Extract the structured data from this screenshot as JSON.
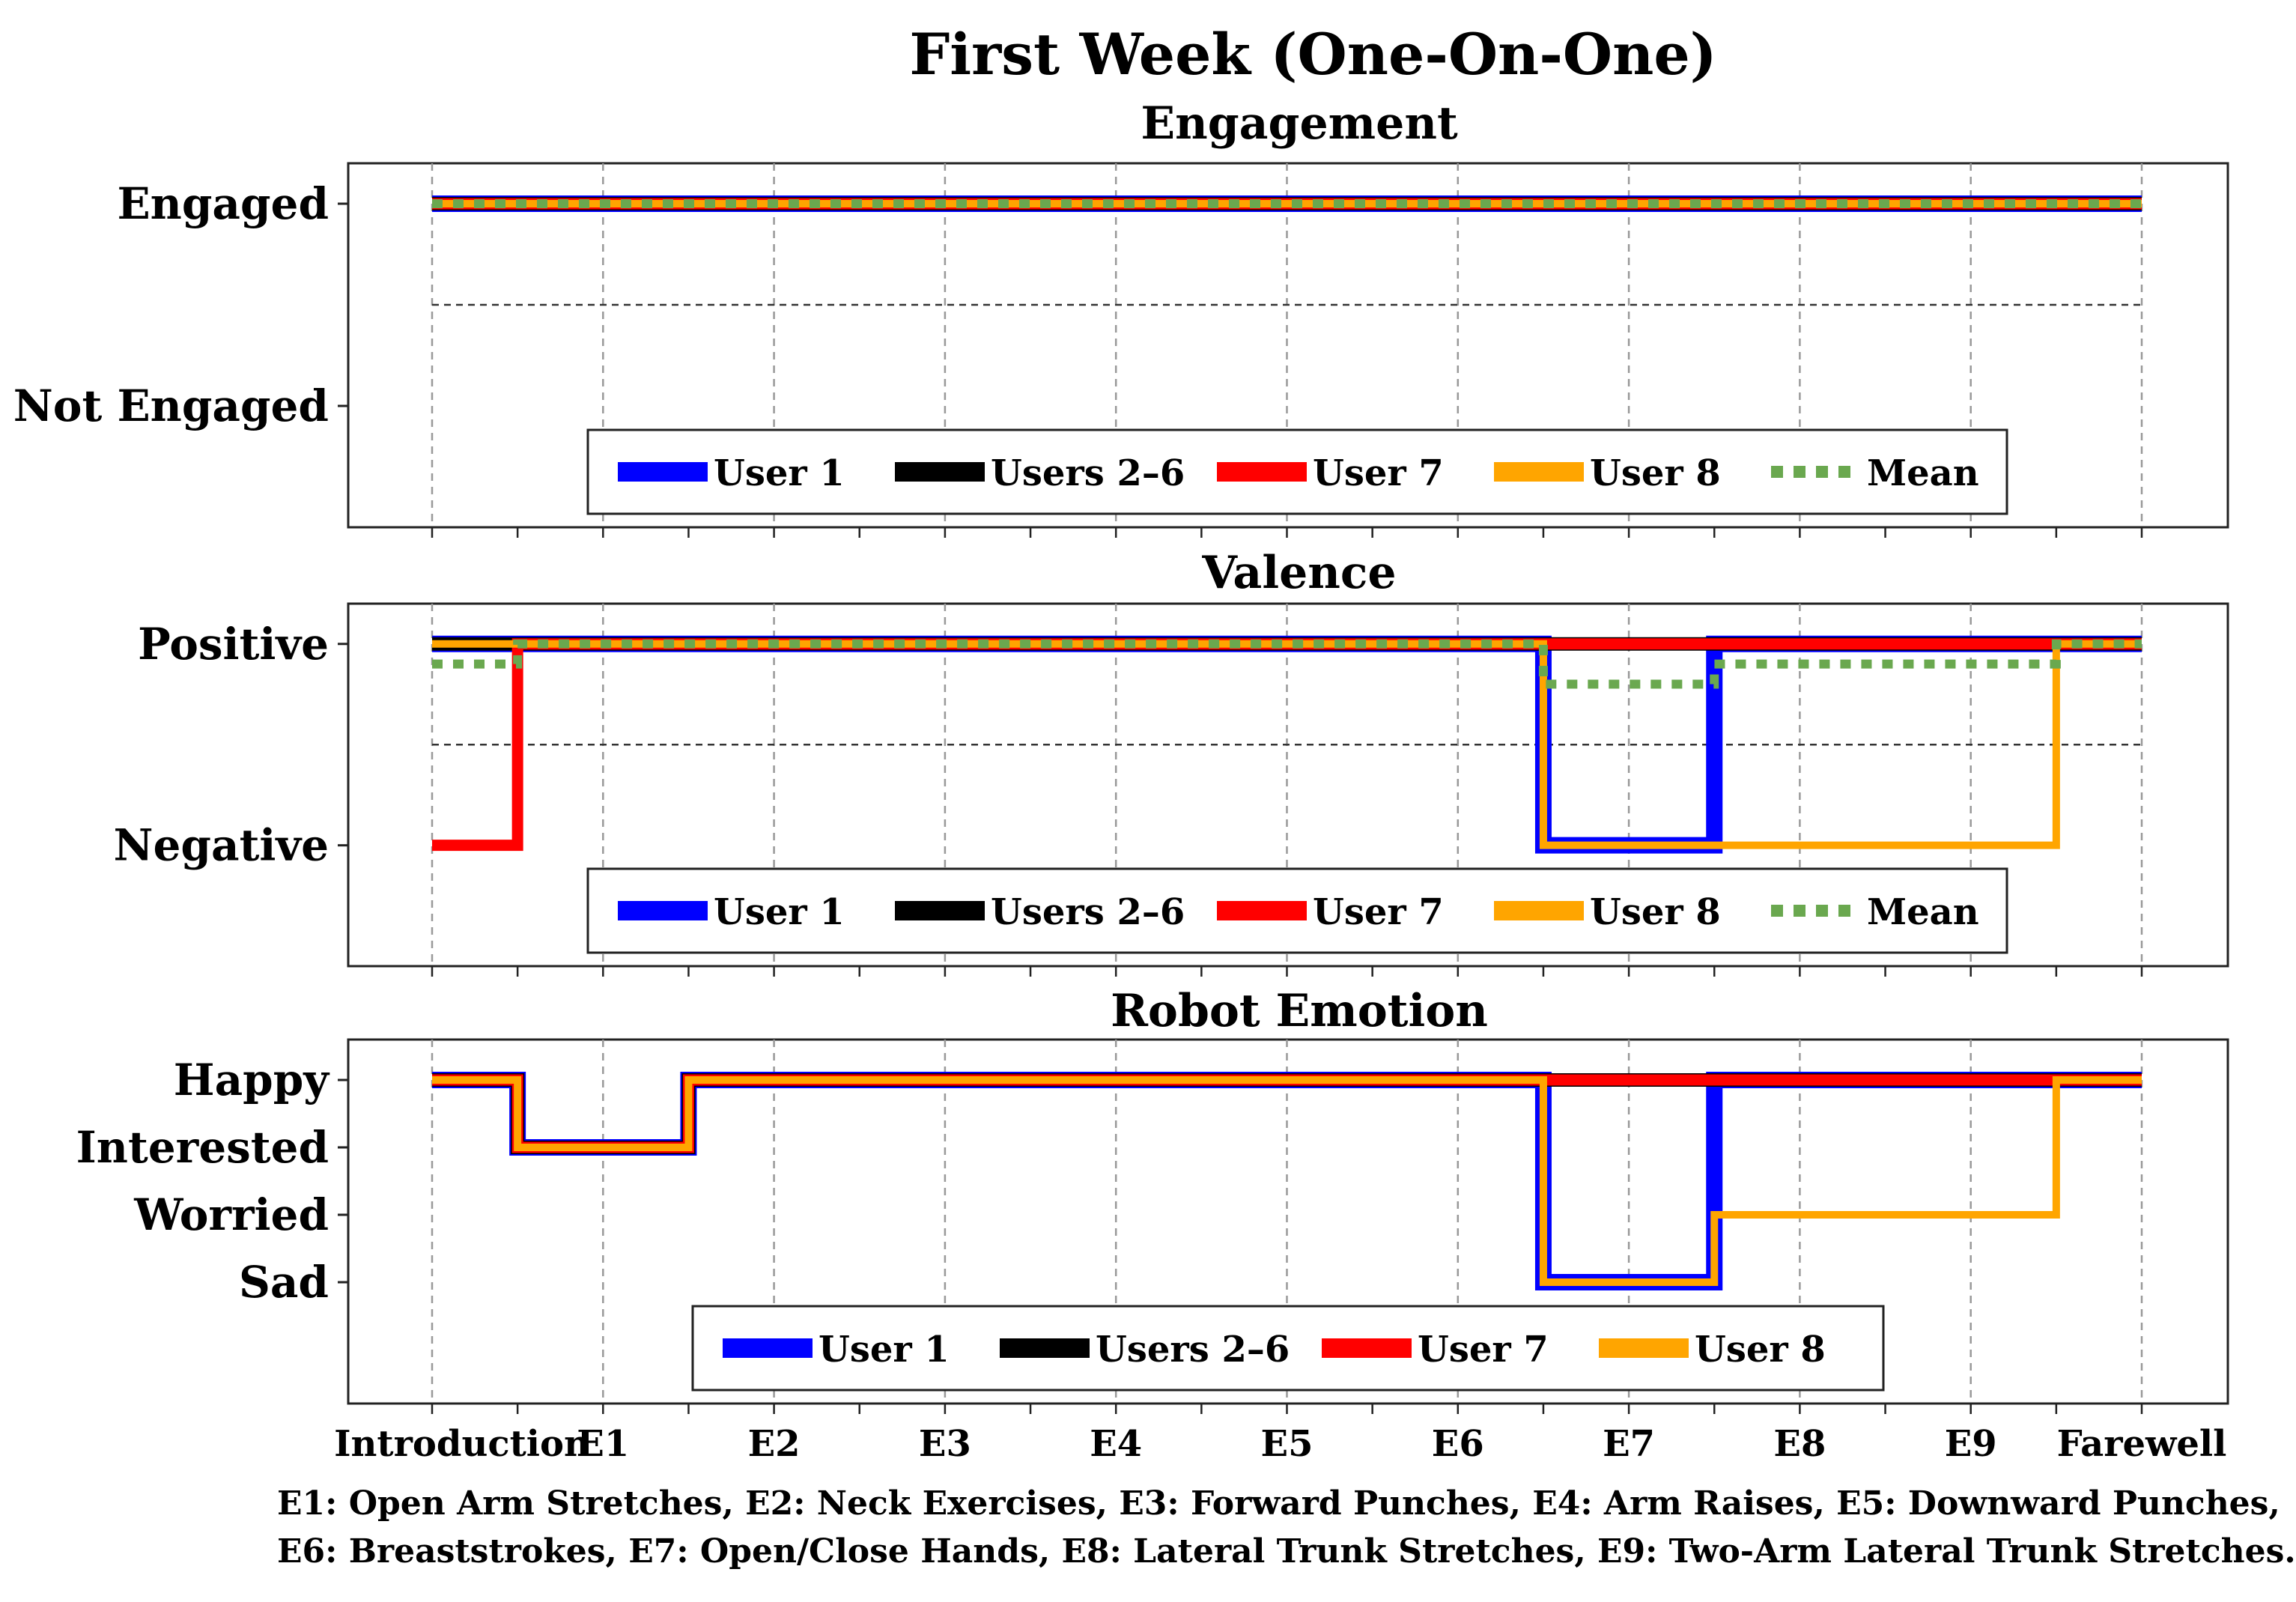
{
  "figure_title": "First Week (One-On-One)",
  "footnote": {
    "line1": "E1: Open Arm Stretches, E2: Neck Exercises, E3: Forward Punches, E4: Arm Raises, E5: Downward Punches,",
    "line2": "E6: Breaststrokes, E7: Open/Close Hands, E8: Lateral Trunk Stretches, E9: Two-Arm Lateral Trunk Stretches."
  },
  "colors": {
    "user1": "#0000ff",
    "users2_6": "#000000",
    "user7": "#ff0000",
    "user8": "#ffa500",
    "mean": "#6aa84f"
  },
  "chart_data": [
    {
      "type": "line",
      "title": "Engagement",
      "categories": [
        "Introduction",
        "E1",
        "E2",
        "E3",
        "E4",
        "E5",
        "E6",
        "E7",
        "E8",
        "E9",
        "Farewell"
      ],
      "y_tick_labels": [
        "Not Engaged",
        "Engaged"
      ],
      "y_tick_values": [
        0,
        1
      ],
      "ylim": [
        -0.6,
        1.2
      ],
      "grid": "vertical dashed at each category",
      "reference_line": 0.5,
      "legend_placement": "lower center",
      "legend": [
        "User 1",
        "Users 2–6",
        "User 7",
        "User 8",
        "Mean"
      ],
      "series": [
        {
          "name": "User 1",
          "values": [
            1,
            1,
            1,
            1,
            1,
            1,
            1,
            1,
            1,
            1,
            1
          ]
        },
        {
          "name": "Users 2–6",
          "values": [
            1,
            1,
            1,
            1,
            1,
            1,
            1,
            1,
            1,
            1,
            1
          ]
        },
        {
          "name": "User 7",
          "values": [
            1,
            1,
            1,
            1,
            1,
            1,
            1,
            1,
            1,
            1,
            1
          ]
        },
        {
          "name": "User 8",
          "values": [
            1,
            1,
            1,
            1,
            1,
            1,
            1,
            1,
            1,
            1,
            1
          ]
        },
        {
          "name": "Mean",
          "values": [
            1,
            1,
            1,
            1,
            1,
            1,
            1,
            1,
            1,
            1,
            1
          ]
        }
      ]
    },
    {
      "type": "line",
      "title": "Valence",
      "categories": [
        "Introduction",
        "E1",
        "E2",
        "E3",
        "E4",
        "E5",
        "E6",
        "E7",
        "E8",
        "E9",
        "Farewell"
      ],
      "y_tick_labels": [
        "Negative",
        "Positive"
      ],
      "y_tick_values": [
        0,
        1
      ],
      "ylim": [
        -0.6,
        1.2
      ],
      "grid": "vertical dashed at each category",
      "reference_line": 0.5,
      "legend_placement": "lower center",
      "legend": [
        "User 1",
        "Users 2–6",
        "User 7",
        "User 8",
        "Mean"
      ],
      "series": [
        {
          "name": "User 1",
          "values": [
            1,
            1,
            1,
            1,
            1,
            1,
            1,
            0,
            1,
            1,
            1
          ]
        },
        {
          "name": "Users 2–6",
          "values": [
            1,
            1,
            1,
            1,
            1,
            1,
            1,
            1,
            1,
            1,
            1
          ]
        },
        {
          "name": "User 7",
          "values": [
            0,
            1,
            1,
            1,
            1,
            1,
            1,
            1,
            1,
            1,
            1
          ]
        },
        {
          "name": "User 8",
          "values": [
            1,
            1,
            1,
            1,
            1,
            1,
            1,
            0,
            0,
            0,
            1
          ]
        },
        {
          "name": "Mean",
          "values": [
            0.9,
            1,
            1,
            1,
            1,
            1,
            1,
            0.8,
            0.9,
            0.9,
            1
          ]
        }
      ]
    },
    {
      "type": "line",
      "title": "Robot Emotion",
      "categories": [
        "Introduction",
        "E1",
        "E2",
        "E3",
        "E4",
        "E5",
        "E6",
        "E7",
        "E8",
        "E9",
        "Farewell"
      ],
      "y_tick_labels": [
        "Sad",
        "Worried",
        "Interested",
        "Happy"
      ],
      "y_tick_values": [
        0,
        1,
        2,
        3
      ],
      "ylim": [
        -1.8,
        3.6
      ],
      "grid": "vertical dashed at each category",
      "legend_placement": "lower center",
      "legend": [
        "User 1",
        "Users 2–6",
        "User 7",
        "User 8"
      ],
      "series": [
        {
          "name": "User 1",
          "values": [
            3,
            2,
            3,
            3,
            3,
            3,
            3,
            0,
            3,
            3,
            3
          ]
        },
        {
          "name": "Users 2–6",
          "values": [
            3,
            2,
            3,
            3,
            3,
            3,
            3,
            3,
            3,
            3,
            3
          ]
        },
        {
          "name": "User 7",
          "values": [
            3,
            2,
            3,
            3,
            3,
            3,
            3,
            3,
            3,
            3,
            3
          ]
        },
        {
          "name": "User 8",
          "values": [
            3,
            2,
            3,
            3,
            3,
            3,
            3,
            0,
            1,
            1,
            3
          ]
        }
      ]
    }
  ]
}
